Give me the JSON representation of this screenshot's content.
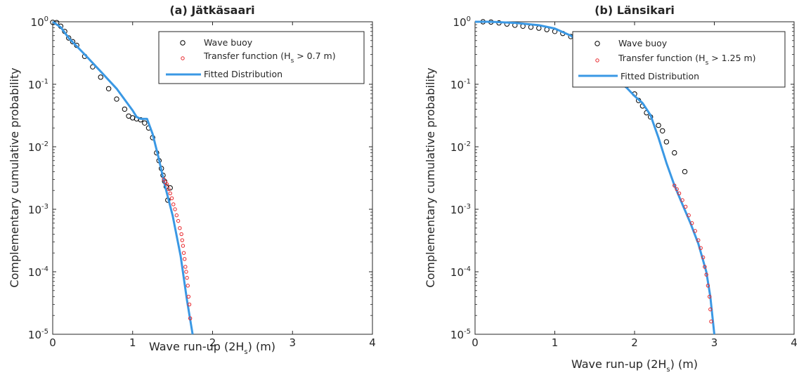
{
  "figure": {
    "ylabel": "Complementary cumulative probability",
    "xlabel_main": "Wave run-up (2H",
    "xlabel_sub": "s",
    "xlabel_tail": ") (m)"
  },
  "colors": {
    "buoy": "#000000",
    "transfer": "#e8262b",
    "fitted": "#3a98e4"
  },
  "chart_data": [
    {
      "type": "scatter",
      "title": "(a) Jätkäsaari",
      "xlabel": "Wave run-up (2Hs) (m)",
      "ylabel": "Complementary cumulative probability",
      "xlim": [
        0,
        4
      ],
      "ylim": [
        1e-05,
        1
      ],
      "yscale": "log",
      "grid": false,
      "legend_position": "top-right",
      "x_ticks": [
        "0",
        "1",
        "2",
        "3",
        "4"
      ],
      "y_ticks": [
        {
          "base": "10",
          "exp": "0"
        },
        {
          "base": "10",
          "exp": "-1"
        },
        {
          "base": "10",
          "exp": "-2"
        },
        {
          "base": "10",
          "exp": "-3"
        },
        {
          "base": "10",
          "exp": "-4"
        },
        {
          "base": "10",
          "exp": "-5"
        }
      ],
      "legend": {
        "buoy": "Wave buoy",
        "transfer_main": "Transfer function (H",
        "transfer_sub": "s",
        "transfer_tail": " > 0.7 m)",
        "fitted": "Fitted Distribution"
      },
      "series": [
        {
          "name": "Wave buoy",
          "marker": "open-circle",
          "x": [
            0.0,
            0.05,
            0.1,
            0.15,
            0.2,
            0.25,
            0.3,
            0.4,
            0.5,
            0.6,
            0.7,
            0.8,
            0.9,
            0.95,
            1.0,
            1.05,
            1.1,
            1.15,
            1.2,
            1.25,
            1.3,
            1.33,
            1.36,
            1.38,
            1.4,
            1.42,
            1.44,
            1.47
          ],
          "y": [
            0.98,
            0.97,
            0.85,
            0.7,
            0.55,
            0.48,
            0.42,
            0.28,
            0.19,
            0.13,
            0.085,
            0.058,
            0.04,
            0.031,
            0.029,
            0.028,
            0.027,
            0.024,
            0.02,
            0.014,
            0.008,
            0.006,
            0.0045,
            0.0035,
            0.0028,
            0.0023,
            0.0014,
            0.0022
          ]
        },
        {
          "name": "Transfer function (Hs > 0.7 m)",
          "marker": "small-open-circle",
          "x": [
            1.39,
            1.41,
            1.43,
            1.45,
            1.47,
            1.49,
            1.51,
            1.53,
            1.55,
            1.57,
            1.59,
            1.61,
            1.62,
            1.63,
            1.64,
            1.65,
            1.66,
            1.67,
            1.68,
            1.69,
            1.7,
            1.71,
            1.72
          ],
          "y": [
            0.003,
            0.0027,
            0.0025,
            0.0021,
            0.0018,
            0.0015,
            0.0012,
            0.001,
            0.0008,
            0.00065,
            0.0005,
            0.0004,
            0.00032,
            0.00026,
            0.0002,
            0.00016,
            0.00012,
            0.0001,
            8e-05,
            6e-05,
            4e-05,
            3e-05,
            1.8e-05
          ]
        },
        {
          "name": "Fitted Distribution",
          "marker": "line",
          "x": [
            0.0,
            0.1,
            0.2,
            0.4,
            0.6,
            0.8,
            1.0,
            1.05,
            1.1,
            1.18,
            1.25,
            1.32,
            1.4,
            1.5,
            1.6,
            1.68,
            1.75
          ],
          "y": [
            1.0,
            0.82,
            0.55,
            0.3,
            0.16,
            0.085,
            0.038,
            0.03,
            0.028,
            0.028,
            0.016,
            0.007,
            0.0025,
            0.0008,
            0.00018,
            3.5e-05,
            1e-05
          ]
        }
      ]
    },
    {
      "type": "scatter",
      "title": "(b) Länsikari",
      "xlabel": "Wave run-up (2Hs) (m)",
      "ylabel": "Complementary cumulative probability",
      "xlim": [
        0,
        4
      ],
      "ylim": [
        1e-05,
        1
      ],
      "yscale": "log",
      "grid": false,
      "legend_position": "top-right",
      "x_ticks": [
        "0",
        "1",
        "2",
        "3",
        "4"
      ],
      "y_ticks": [
        {
          "base": "10",
          "exp": "0"
        },
        {
          "base": "10",
          "exp": "-1"
        },
        {
          "base": "10",
          "exp": "-2"
        },
        {
          "base": "10",
          "exp": "-3"
        },
        {
          "base": "10",
          "exp": "-4"
        },
        {
          "base": "10",
          "exp": "-5"
        }
      ],
      "legend": {
        "buoy": "Wave buoy",
        "transfer_main": "Transfer function (H",
        "transfer_sub": "s",
        "transfer_tail": " > 1.25 m)",
        "fitted": "Fitted Distribution"
      },
      "series": [
        {
          "name": "Wave buoy",
          "marker": "open-circle",
          "x": [
            0.1,
            0.2,
            0.3,
            0.4,
            0.5,
            0.6,
            0.7,
            0.8,
            0.9,
            1.0,
            1.1,
            1.2,
            1.3,
            1.4,
            1.5,
            1.6,
            1.7,
            1.8,
            1.9,
            2.0,
            2.05,
            2.1,
            2.15,
            2.2,
            2.3,
            2.35,
            2.4,
            2.5,
            2.63
          ],
          "y": [
            1.0,
            0.99,
            0.96,
            0.92,
            0.88,
            0.85,
            0.82,
            0.79,
            0.75,
            0.7,
            0.65,
            0.58,
            0.5,
            0.4,
            0.3,
            0.22,
            0.16,
            0.12,
            0.095,
            0.07,
            0.055,
            0.045,
            0.035,
            0.03,
            0.022,
            0.018,
            0.012,
            0.008,
            0.004
          ]
        },
        {
          "name": "Transfer function (Hs > 1.25 m)",
          "marker": "small-open-circle",
          "x": [
            2.5,
            2.53,
            2.56,
            2.6,
            2.64,
            2.68,
            2.72,
            2.76,
            2.8,
            2.83,
            2.86,
            2.88,
            2.9,
            2.92,
            2.94,
            2.95,
            2.96
          ],
          "y": [
            0.0024,
            0.0021,
            0.0018,
            0.0014,
            0.0011,
            0.0008,
            0.0006,
            0.00045,
            0.00032,
            0.00024,
            0.00017,
            0.00012,
            9e-05,
            6e-05,
            4e-05,
            2.5e-05,
            1.6e-05
          ]
        },
        {
          "name": "Fitted Distribution",
          "marker": "line",
          "x": [
            0.0,
            0.2,
            0.5,
            0.8,
            1.0,
            1.2,
            1.4,
            1.6,
            1.8,
            2.0,
            2.1,
            2.2,
            2.3,
            2.4,
            2.5,
            2.6,
            2.7,
            2.8,
            2.9,
            2.95,
            3.0
          ],
          "y": [
            1.0,
            1.0,
            0.96,
            0.88,
            0.78,
            0.6,
            0.38,
            0.22,
            0.12,
            0.065,
            0.05,
            0.032,
            0.014,
            0.0055,
            0.0024,
            0.0012,
            0.0006,
            0.00028,
            0.0001,
            4e-05,
            1e-05
          ]
        }
      ]
    }
  ]
}
